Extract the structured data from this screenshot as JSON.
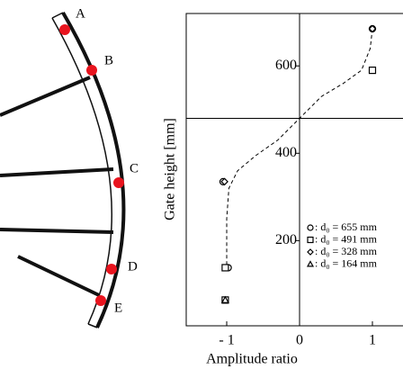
{
  "diagram": {
    "labels": [
      "A",
      "B",
      "C",
      "D",
      "E"
    ]
  },
  "chart_data": {
    "type": "scatter",
    "x_label": "Amplitude ratio",
    "y_label": "Gate height [mm]",
    "xlim": [
      -1.556,
      1.42
    ],
    "ylim": [
      5,
      720
    ],
    "xticks": [
      {
        "value": -1,
        "label": "- 1"
      },
      0,
      1
    ],
    "yticks": [
      200,
      400,
      600
    ],
    "vline": 0,
    "hline": 480,
    "series": [
      {
        "name": ": d₀ = 655 mm",
        "marker": "circle",
        "color": "#000000",
        "x": [
          1.0,
          -1.05,
          -0.98
        ],
        "values": [
          685,
          335,
          138
        ]
      },
      {
        "name": ": d₀ = 491 mm",
        "marker": "square",
        "color": "#000000",
        "x": [
          1.0,
          -1.02,
          -1.02
        ],
        "values": [
          590,
          138,
          64
        ]
      },
      {
        "name": ": d₀ = 328 mm",
        "marker": "diamond",
        "color": "#000000",
        "x": [
          1.0,
          -1.03
        ],
        "values": [
          685,
          335
        ]
      },
      {
        "name": ": d₀ = 164 mm",
        "marker": "triangle",
        "color": "#000000",
        "x": [
          -1.02
        ],
        "values": [
          64
        ]
      }
    ],
    "fit": {
      "x": [
        1.0,
        0.97,
        0.85,
        0.6,
        0.3,
        0.0,
        -0.3,
        -0.6,
        -0.85,
        -0.97,
        -1.0,
        -1.0
      ],
      "values": [
        685,
        640,
        590,
        560,
        530,
        480,
        430,
        395,
        360,
        320,
        250,
        140
      ]
    }
  }
}
